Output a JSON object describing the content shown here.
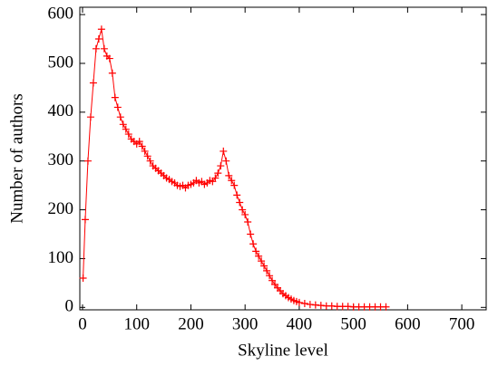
{
  "chart_data": {
    "type": "line",
    "xlabel": "Skyline level",
    "ylabel": "Number of authors",
    "color": "#ff0000",
    "marker": "+",
    "x": [
      1,
      5,
      10,
      15,
      20,
      25,
      30,
      35,
      40,
      45,
      50,
      55,
      60,
      65,
      70,
      75,
      80,
      85,
      90,
      95,
      100,
      105,
      110,
      115,
      120,
      125,
      130,
      135,
      140,
      145,
      150,
      155,
      160,
      165,
      170,
      175,
      180,
      185,
      190,
      195,
      200,
      205,
      210,
      215,
      220,
      225,
      230,
      235,
      240,
      245,
      250,
      255,
      260,
      265,
      270,
      275,
      280,
      285,
      290,
      295,
      300,
      305,
      310,
      315,
      320,
      325,
      330,
      335,
      340,
      345,
      350,
      355,
      360,
      365,
      370,
      375,
      380,
      385,
      390,
      395,
      400,
      410,
      420,
      430,
      440,
      450,
      460,
      470,
      480,
      490,
      500,
      510,
      520,
      530,
      540,
      550,
      560
    ],
    "values": [
      60,
      180,
      300,
      390,
      460,
      530,
      550,
      570,
      530,
      515,
      510,
      480,
      430,
      410,
      390,
      375,
      365,
      355,
      345,
      340,
      335,
      340,
      330,
      320,
      310,
      300,
      290,
      285,
      280,
      275,
      270,
      265,
      262,
      258,
      255,
      250,
      248,
      250,
      245,
      250,
      252,
      255,
      260,
      255,
      258,
      252,
      255,
      260,
      258,
      265,
      275,
      290,
      320,
      300,
      270,
      260,
      250,
      230,
      215,
      200,
      190,
      175,
      150,
      130,
      115,
      105,
      95,
      85,
      75,
      65,
      55,
      47,
      40,
      34,
      28,
      24,
      20,
      17,
      14,
      12,
      10,
      8,
      6,
      5,
      4,
      3,
      3,
      2,
      2,
      2,
      1,
      1,
      1,
      1,
      1,
      1,
      1
    ],
    "xlim": [
      -5,
      745
    ],
    "ylim": [
      -5,
      615
    ],
    "xticks": [
      0,
      100,
      200,
      300,
      400,
      500,
      600,
      700
    ],
    "yticks": [
      0,
      100,
      200,
      300,
      400,
      500,
      600
    ]
  }
}
